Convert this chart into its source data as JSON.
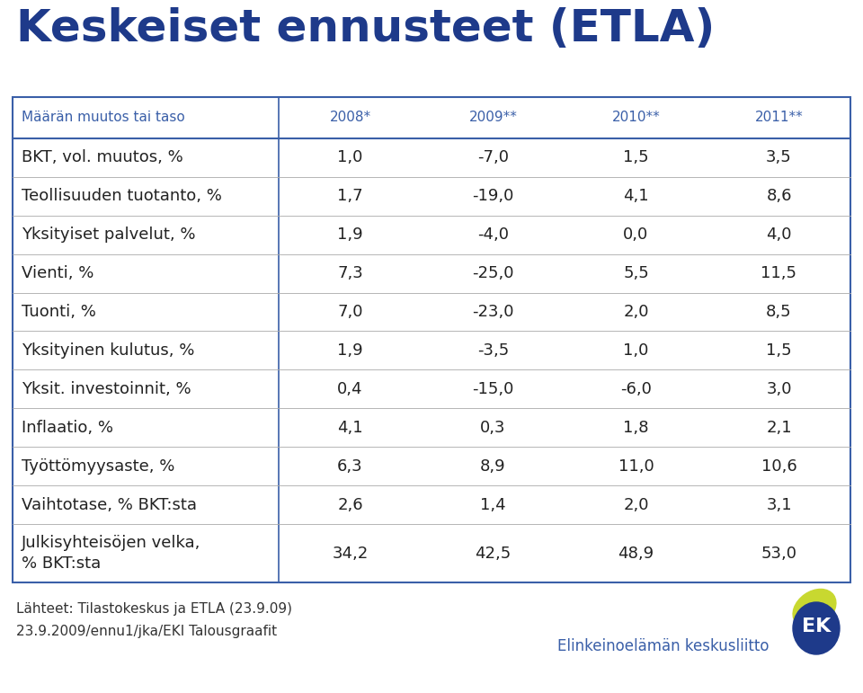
{
  "title": "Keskeiset ennusteet (ETLA)",
  "title_color": "#1e3a8a",
  "header_row": [
    "Määrän muutos tai taso",
    "2008*",
    "2009**",
    "2010**",
    "2011**"
  ],
  "rows": [
    [
      "BKT, vol. muutos, %",
      "1,0",
      "-7,0",
      "1,5",
      "3,5"
    ],
    [
      "Teollisuuden tuotanto, %",
      "1,7",
      "-19,0",
      "4,1",
      "8,6"
    ],
    [
      "Yksityiset palvelut, %",
      "1,9",
      "-4,0",
      "0,0",
      "4,0"
    ],
    [
      "Vienti, %",
      "7,3",
      "-25,0",
      "5,5",
      "11,5"
    ],
    [
      "Tuonti, %",
      "7,0",
      "-23,0",
      "2,0",
      "8,5"
    ],
    [
      "Yksityinen kulutus, %",
      "1,9",
      "-3,5",
      "1,0",
      "1,5"
    ],
    [
      "Yksit. investoinnit, %",
      "0,4",
      "-15,0",
      "-6,0",
      "3,0"
    ],
    [
      "Inflaatio, %",
      "4,1",
      "0,3",
      "1,8",
      "2,1"
    ],
    [
      "Työttömyysaste, %",
      "6,3",
      "8,9",
      "11,0",
      "10,6"
    ],
    [
      "Vaihtotase, % BKT:sta",
      "2,6",
      "1,4",
      "2,0",
      "3,1"
    ],
    [
      "Julkisyhteisöjen velka,\n% BKT:sta",
      "34,2",
      "42,5",
      "48,9",
      "53,0"
    ]
  ],
  "footer_line1": "Lähteet: Tilastokeskus ja ETLA (23.9.09)",
  "footer_line2": "23.9.2009/ennu1/jka/EKI Talousgraafit",
  "ek_text": "Elinkeinoelämän keskusliitto",
  "table_border_color": "#3a5fa8",
  "header_text_color": "#3a5fa8",
  "row_text_color": "#222222",
  "background_color": "#ffffff",
  "title_fontsize": 36,
  "header_fontsize": 11,
  "data_fontsize": 13,
  "footer_fontsize": 11,
  "ek_text_fontsize": 12
}
